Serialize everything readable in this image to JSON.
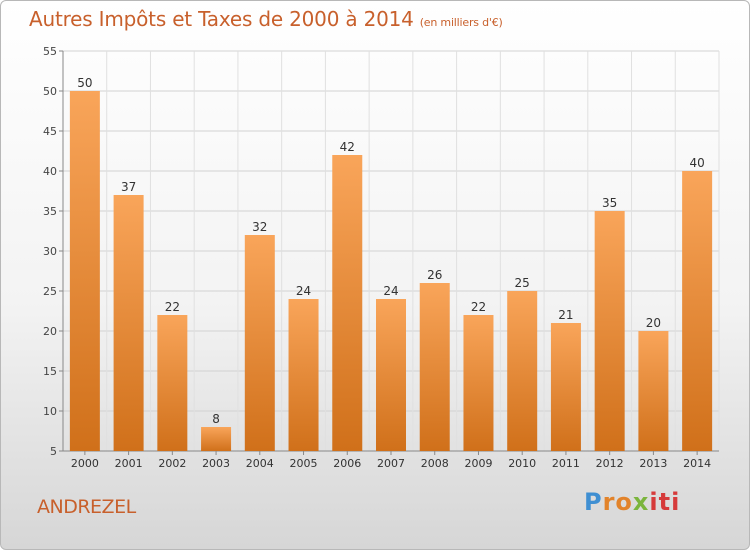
{
  "header": {
    "title": "Autres Impôts et Taxes de 2000 à 2014",
    "unit": "(en milliers d'€)"
  },
  "footer": {
    "place": "ANDREZEL",
    "logo": {
      "l1": "P",
      "l2": "ro",
      "l3": "x",
      "l4": "iti"
    }
  },
  "colors": {
    "bar_top": "#f9a55a",
    "bar_bottom": "#d0701a",
    "title": "#c8602c"
  },
  "chart_data": {
    "type": "bar",
    "title": "Autres Impôts et Taxes de 2000 à 2014",
    "subtitle": "(en milliers d'€)",
    "categories": [
      "2000",
      "2001",
      "2002",
      "2003",
      "2004",
      "2005",
      "2006",
      "2007",
      "2008",
      "2009",
      "2010",
      "2011",
      "2012",
      "2013",
      "2014"
    ],
    "values": [
      50,
      37,
      22,
      8,
      32,
      24,
      42,
      24,
      26,
      22,
      25,
      21,
      35,
      20,
      40
    ],
    "ylim": [
      5,
      55
    ],
    "yticks": [
      5,
      10,
      15,
      20,
      25,
      30,
      35,
      40,
      45,
      50,
      55
    ],
    "grid": true
  }
}
